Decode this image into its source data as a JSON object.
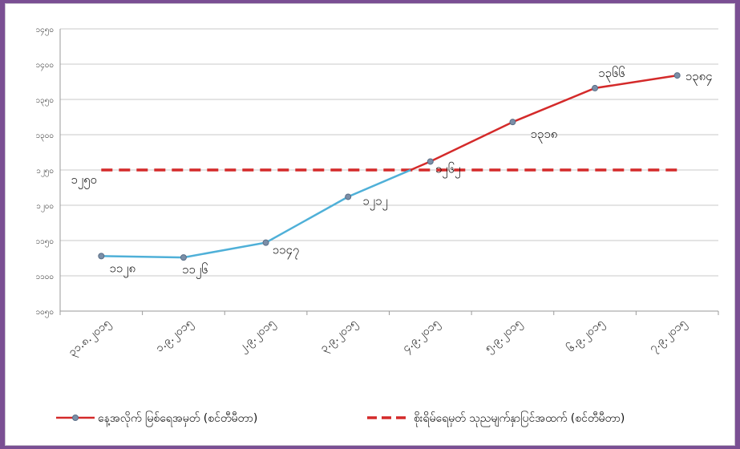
{
  "chart_data": {
    "type": "line",
    "title": "",
    "xlabel": "",
    "ylabel": "",
    "categories": [
      "၃၁.၈.၂၀၁၅",
      "၁.၉.၂၀၁၅",
      "၂.၉.၂၀၁၅",
      "၃.၉.၂၀၁၅",
      "၄.၉.၂၀၁၅",
      "၅.၉.၂၀၁၅",
      "၆.၉.၂၀၁၅",
      "၇.၉.၂၀၁၅"
    ],
    "y_tick_labels": [
      "၁၀၅၀",
      "၁၁၀၀",
      "၁၁၅၀",
      "၁၂၀၀",
      "၁၂၅၀",
      "၁၃၀၀",
      "၁၃၅၀",
      "၁၄၀၀",
      "၁၄၅၀"
    ],
    "ylim": [
      1050,
      1450
    ],
    "grid": true,
    "legend_position": "bottom",
    "series": [
      {
        "name": "နေ့အလိုက် မြစ်ရေအမှတ် (စင်တီမီတာ)",
        "values": [
          1128,
          1126,
          1147,
          1212,
          1262,
          1318,
          1366,
          1384
        ],
        "labels": [
          "၁၁၂၈",
          "၁၁၂၆",
          "၁၁၄၇",
          "၁၂၁၂",
          "၁၂၆၂",
          "၁၃၁၈",
          "၁၃၆၆",
          "၁၃၈၄"
        ],
        "color_below": "#4fb0d8",
        "color_above": "#d42a2a"
      },
      {
        "name": "စိုးရိမ်ရေမှတ် သုညမျက်နှာပြင်အထက် (စင်တီမီတာ)",
        "values": [
          1250,
          1250,
          1250,
          1250,
          1250,
          1250,
          1250,
          1250
        ],
        "label": "၁၂၅၀",
        "color": "#d42a2a",
        "dashed": true
      }
    ]
  }
}
